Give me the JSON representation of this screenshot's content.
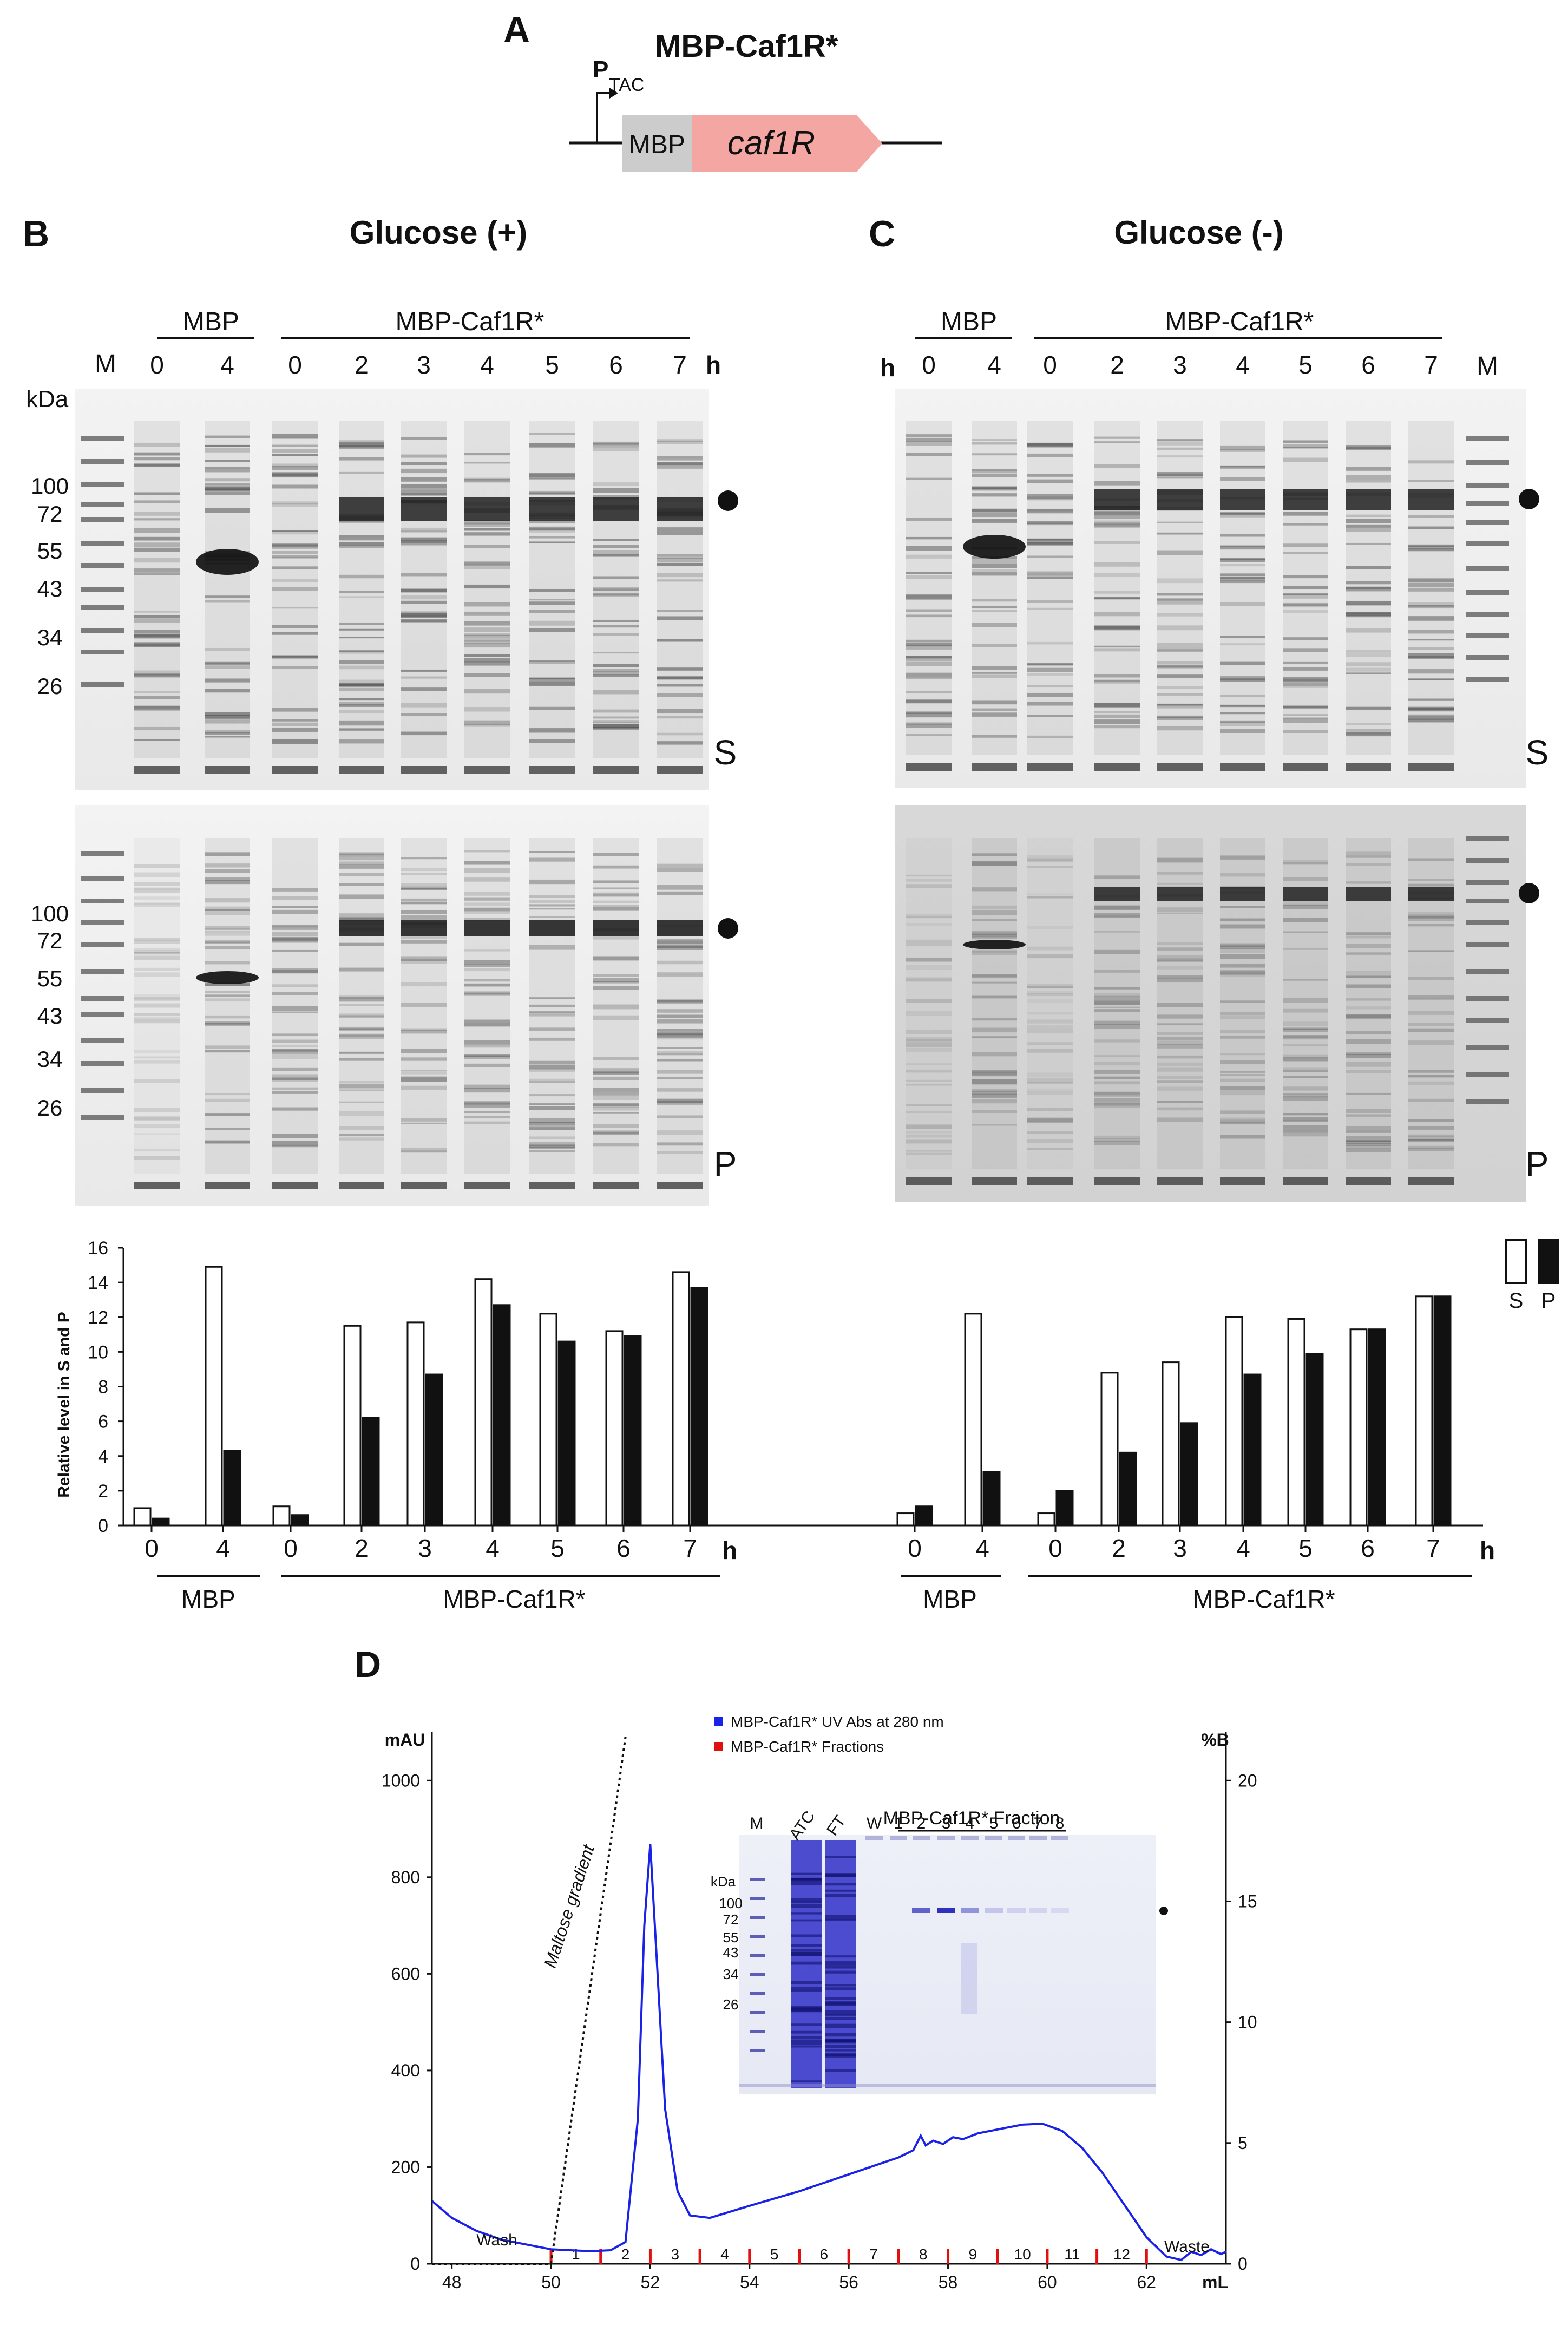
{
  "panel_a": {
    "letter": "A",
    "title": "MBP-Caf1R*",
    "promoter_main": "P",
    "promoter_sub": "TAC",
    "box_mbp": "MBP",
    "box_gene": "caf1R"
  },
  "panel_b": {
    "letter": "B",
    "title": "Glucose (+)",
    "group_mbp": "MBP",
    "group_caf": "MBP-Caf1R*",
    "marker_label": "M",
    "hour_label": "h",
    "lanes": [
      "0",
      "4",
      "0",
      "2",
      "3",
      "4",
      "5",
      "6",
      "7"
    ],
    "kda_label": "kDa",
    "kda_s": [
      "100",
      "72",
      "55",
      "43",
      "34",
      "26"
    ],
    "kda_p": [
      "100",
      "72",
      "55",
      "43",
      "34",
      "26"
    ],
    "fraction_s": "S",
    "fraction_p": "P"
  },
  "panel_c": {
    "letter": "C",
    "title": "Glucose (-)",
    "group_mbp": "MBP",
    "group_caf": "MBP-Caf1R*",
    "marker_label": "M",
    "hour_label": "h",
    "lanes": [
      "0",
      "4",
      "0",
      "2",
      "3",
      "4",
      "5",
      "6",
      "7"
    ],
    "fraction_s": "S",
    "fraction_p": "P"
  },
  "bar_chart": {
    "ylabel": "Relative level in S and P",
    "yticks": [
      "0",
      "2",
      "4",
      "6",
      "8",
      "10",
      "12",
      "14",
      "16"
    ],
    "legend_s": "S",
    "legend_p": "P",
    "xlabel_h": "h",
    "left_group_mbp": "MBP",
    "left_group_caf": "MBP-Caf1R*",
    "right_group_mbp": "MBP",
    "right_group_caf": "MBP-Caf1R*"
  },
  "panel_d": {
    "letter": "D",
    "yleft_label": "mAU",
    "yright_label": "%B",
    "yleft_ticks": [
      "0",
      "200",
      "400",
      "600",
      "800",
      "1000"
    ],
    "yright_ticks": [
      "0",
      "5",
      "10",
      "15",
      "20"
    ],
    "x_ticks": [
      "48",
      "50",
      "52",
      "54",
      "56",
      "58",
      "60",
      "62"
    ],
    "x_unit": "mL",
    "legend_uv": "MBP-Caf1R* UV Abs at 280 nm",
    "legend_fr": "MBP-Caf1R* Fractions",
    "gradient_label": "Maltose gradient",
    "wash_label": "Wash",
    "waste_label": "Waste",
    "fractions": [
      "1",
      "2",
      "3",
      "4",
      "5",
      "6",
      "7",
      "8",
      "9",
      "10",
      "11",
      "12"
    ],
    "inset": {
      "title": "MBP-Caf1R* Fraction",
      "lanes": [
        "M",
        "ATC",
        "FT",
        "W",
        "1",
        "2",
        "3",
        "4",
        "5",
        "6",
        "7",
        "8"
      ],
      "kda_label": "kDa",
      "kda": [
        "100",
        "72",
        "55",
        "43",
        "34",
        "26"
      ]
    }
  },
  "chart_data": [
    {
      "type": "bar",
      "title": "Glucose (+)",
      "ylabel": "Relative level in S and P",
      "xlabel": "h",
      "categories": [
        "MBP 0",
        "MBP 4",
        "MBP-Caf1R* 0",
        "MBP-Caf1R* 2",
        "MBP-Caf1R* 3",
        "MBP-Caf1R* 4",
        "MBP-Caf1R* 5",
        "MBP-Caf1R* 6",
        "MBP-Caf1R* 7"
      ],
      "series": [
        {
          "name": "S",
          "values": [
            1.0,
            14.9,
            1.1,
            11.5,
            11.7,
            14.2,
            12.2,
            11.2,
            14.6
          ]
        },
        {
          "name": "P",
          "values": [
            0.4,
            4.3,
            0.6,
            6.2,
            8.7,
            12.7,
            10.6,
            10.9,
            13.7
          ]
        }
      ],
      "ylim": [
        0,
        16
      ]
    },
    {
      "type": "bar",
      "title": "Glucose (-)",
      "ylabel": "Relative level in S and P",
      "xlabel": "h",
      "categories": [
        "MBP 0",
        "MBP 4",
        "MBP-Caf1R* 0",
        "MBP-Caf1R* 2",
        "MBP-Caf1R* 3",
        "MBP-Caf1R* 4",
        "MBP-Caf1R* 5",
        "MBP-Caf1R* 6",
        "MBP-Caf1R* 7"
      ],
      "series": [
        {
          "name": "S",
          "values": [
            0.7,
            12.2,
            0.7,
            8.8,
            9.4,
            12.0,
            11.9,
            11.3,
            13.2
          ]
        },
        {
          "name": "P",
          "values": [
            1.1,
            3.1,
            2.0,
            4.2,
            5.9,
            8.7,
            9.9,
            11.3,
            13.2
          ]
        }
      ],
      "ylim": [
        0,
        16
      ]
    },
    {
      "type": "line",
      "title": "MBP-Caf1R* UV Abs at 280 nm",
      "xlabel": "mL",
      "ylabel": "mAU",
      "xlim": [
        47.6,
        63.6
      ],
      "ylim": [
        0,
        1100
      ],
      "x": [
        47.6,
        48.0,
        48.5,
        49.0,
        49.5,
        50.0,
        50.4,
        50.8,
        51.2,
        51.5,
        51.75,
        51.88,
        52.0,
        52.12,
        52.3,
        52.55,
        52.8,
        53.2,
        54.0,
        55.0,
        56.0,
        57.0,
        57.3,
        57.45,
        57.55,
        57.7,
        57.9,
        58.1,
        58.3,
        58.6,
        59.0,
        59.5,
        59.9,
        60.3,
        60.7,
        61.1,
        61.5,
        62.0,
        62.4,
        62.7,
        62.9,
        63.1,
        63.3,
        63.5,
        63.6
      ],
      "series": [
        {
          "name": "MBP-Caf1R* UV Abs at 280 nm",
          "values": [
            130,
            95,
            68,
            50,
            40,
            30,
            28,
            26,
            28,
            45,
            300,
            700,
            868,
            650,
            320,
            150,
            100,
            95,
            120,
            150,
            185,
            220,
            235,
            265,
            245,
            255,
            248,
            262,
            258,
            270,
            278,
            288,
            290,
            275,
            240,
            190,
            130,
            55,
            15,
            8,
            25,
            18,
            30,
            20,
            25
          ]
        },
        {
          "name": "Maltose gradient (%B)",
          "values": [
            0,
            0,
            0,
            0,
            0,
            0,
            5.8,
            11.6,
            17.4,
            21.8,
            null,
            null,
            null,
            null,
            null,
            null,
            null,
            null,
            null,
            null,
            null,
            null,
            null,
            null,
            null,
            null,
            null,
            null,
            null,
            null,
            null,
            null,
            null,
            null,
            null,
            null,
            null,
            null,
            null,
            null,
            null,
            null,
            null,
            null,
            null
          ]
        }
      ]
    }
  ]
}
